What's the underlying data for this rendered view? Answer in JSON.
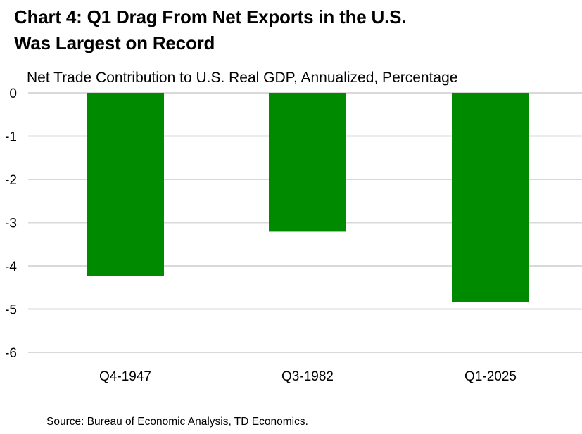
{
  "title_lines": [
    "Chart 4: Q1 Drag From Net Exports in the U.S.",
    "Was Largest on Record"
  ],
  "subtitle": "Net Trade Contribution to U.S. Real GDP, Annualized, Percentage",
  "source": "Source: Bureau of Economic Analysis, TD Economics.",
  "colors": {
    "bar": "#008a00",
    "grid": "#d9d9d9",
    "text": "#000000"
  },
  "chart_data": {
    "type": "bar",
    "title": "Chart 4: Q1 Drag From Net Exports in the U.S. Was Largest on Record",
    "subtitle": "Net Trade Contribution to U.S. Real GDP, Annualized, Percentage",
    "categories": [
      "Q4-1947",
      "Q3-1982",
      "Q1-2025"
    ],
    "values": [
      -4.23,
      -3.21,
      -4.83
    ],
    "ylim": [
      -6,
      0
    ],
    "yticks": [
      0,
      -1,
      -2,
      -3,
      -4,
      -5,
      -6
    ],
    "xlabel": "",
    "ylabel": "",
    "grid": true,
    "legend": "none"
  }
}
